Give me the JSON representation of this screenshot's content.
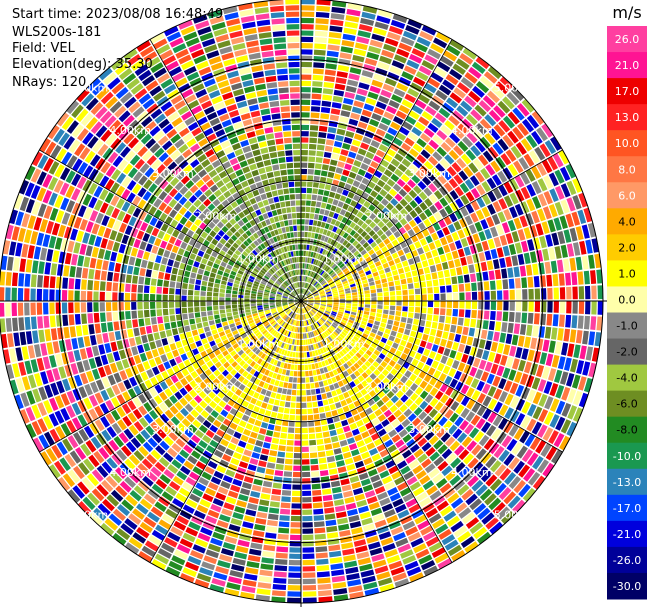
{
  "header": {
    "start_time": "Start time: 2023/08/08 16:48:49",
    "instrument": "WLS200s-181",
    "field": "Field: VEL",
    "elevation": "Elevation(deg): 35.30",
    "nrays": "NRays: 120"
  },
  "colorbar": {
    "unit": "m/s",
    "ticks": [
      "26.0",
      "21.0",
      "17.0",
      "13.0",
      "10.0",
      "8.0",
      "6.0",
      "4.0",
      "2.0",
      "1.0",
      "0.0",
      "-1.0",
      "-2.0",
      "-4.0",
      "-6.0",
      "-8.0",
      "-10.0",
      "-13.0",
      "-17.0",
      "-21.0",
      "-26.0",
      "-30.0"
    ],
    "colors": [
      "#ff3fa0",
      "#ff1493",
      "#ee0000",
      "#ff2222",
      "#ff5522",
      "#ff7744",
      "#ff9966",
      "#ffaa00",
      "#ffcc00",
      "#ffff00",
      "#ffffaa",
      "#888888",
      "#666666",
      "#a0c840",
      "#6e8e22",
      "#228b22",
      "#1a9850",
      "#2b83ba",
      "#0044ff",
      "#0000dd",
      "#000099",
      "#000066"
    ]
  },
  "chart_data": {
    "type": "heatmap",
    "plot_kind": "PPI (polar)",
    "field": "VEL",
    "unit": "m/s",
    "nrays": 120,
    "elevation_deg": 35.3,
    "range_ring_labels": [
      "1.00km",
      "2.00km",
      "3.00km",
      "4.00km",
      "5.00km"
    ],
    "range_rings_km": [
      1,
      2,
      3,
      4,
      5
    ],
    "range_max_km": 5.0,
    "color_scale_min": -30.0,
    "color_scale_max": 26.0
  }
}
